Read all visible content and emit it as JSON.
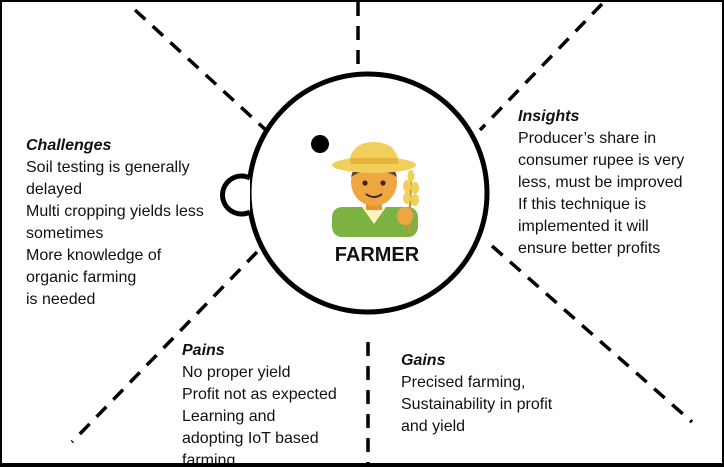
{
  "center": {
    "label": "FARMER",
    "icon": "farmer-icon"
  },
  "challenges": {
    "title": "Challenges",
    "lines": [
      "Soil testing is generally",
      "delayed",
      "Multi cropping yields less",
      "sometimes",
      "More knowledge of",
      "organic farming",
      "is needed"
    ]
  },
  "insights": {
    "title": "Insights",
    "lines": [
      "Producer’s share in",
      "consumer rupee is very",
      "less, must be improved",
      "If this technique is",
      "implemented it will",
      "ensure better profits"
    ]
  },
  "pains": {
    "title": "Pains",
    "lines": [
      "No proper yield",
      "Profit not as expected",
      "Learning and",
      "adopting IoT based",
      "farming"
    ]
  },
  "gains": {
    "title": "Gains",
    "lines": [
      "Precised farming,",
      "Sustainability in profit",
      "and yield"
    ]
  },
  "colors": {
    "outline": "#000000",
    "hat": "#f2cf5b",
    "skin": "#f0a640",
    "shirt": "#7cb342",
    "wheat": "#f2cf5b"
  }
}
